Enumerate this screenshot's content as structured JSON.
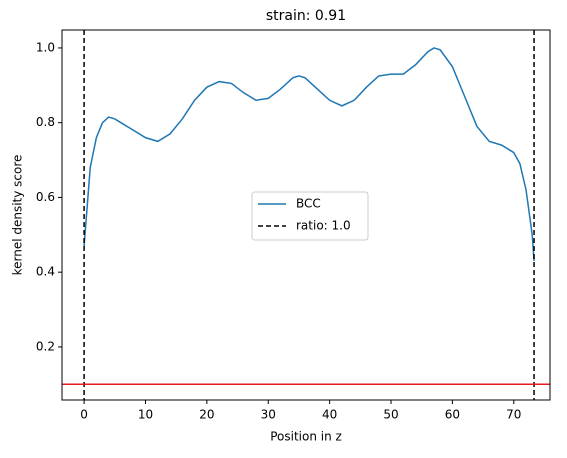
{
  "chart_data": {
    "type": "line",
    "title": "strain: 0.91",
    "xlabel": "Position in z",
    "ylabel": "kernel density score",
    "series": [
      {
        "name": "BCC",
        "color": "#1f77b4",
        "x": [
          0,
          1,
          2,
          3,
          4,
          5,
          6,
          8,
          10,
          12,
          14,
          16,
          18,
          20,
          22,
          24,
          26,
          28,
          30,
          32,
          34,
          35,
          36,
          38,
          40,
          42,
          44,
          46,
          48,
          50,
          52,
          54,
          56,
          57,
          58,
          60,
          62,
          64,
          66,
          68,
          70,
          71,
          72,
          73,
          73.3
        ],
        "values": [
          0.47,
          0.68,
          0.76,
          0.8,
          0.815,
          0.81,
          0.8,
          0.78,
          0.76,
          0.75,
          0.77,
          0.81,
          0.86,
          0.895,
          0.91,
          0.905,
          0.88,
          0.86,
          0.865,
          0.89,
          0.92,
          0.925,
          0.92,
          0.89,
          0.86,
          0.845,
          0.86,
          0.895,
          0.925,
          0.93,
          0.93,
          0.955,
          0.99,
          1.0,
          0.995,
          0.95,
          0.87,
          0.79,
          0.75,
          0.74,
          0.72,
          0.69,
          0.62,
          0.5,
          0.43
        ]
      }
    ],
    "vlines": {
      "name": "ratio: 1.0",
      "color": "#000000",
      "x": [
        0,
        73.3
      ]
    },
    "hline": {
      "value": 0.1,
      "color": "#e41a1c"
    },
    "xlim": [
      -3.6,
      75.9
    ],
    "ylim": [
      0.058,
      1.048
    ],
    "xticks": [
      0,
      10,
      20,
      30,
      40,
      50,
      60,
      70
    ],
    "yticks": [
      0.2,
      0.4,
      0.6,
      0.8,
      {
        "value": 1,
        "label": "1.0"
      }
    ],
    "legend": "center"
  }
}
